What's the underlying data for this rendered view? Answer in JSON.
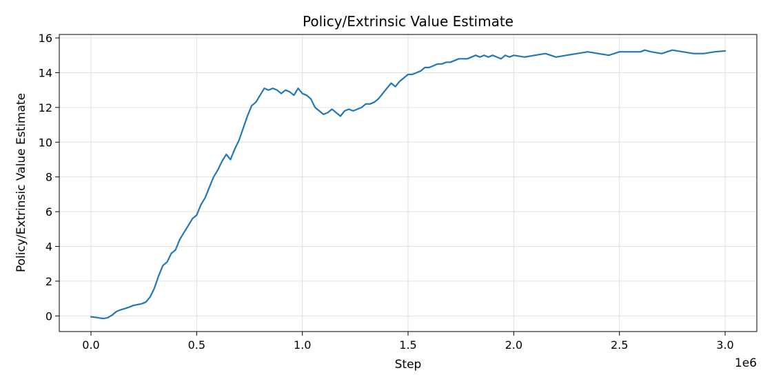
{
  "chart_data": {
    "type": "line",
    "title": "Policy/Extrinsic Value Estimate",
    "xlabel": "Step",
    "ylabel": "Policy/Extrinsic Value Estimate",
    "x_offset_label": "1e6",
    "xlim": [
      -0.15,
      3.15
    ],
    "ylim": [
      -0.9,
      16.2
    ],
    "x_ticks": [
      0.0,
      0.5,
      1.0,
      1.5,
      2.0,
      2.5,
      3.0
    ],
    "x_tick_labels": [
      "0.0",
      "0.5",
      "1.0",
      "1.5",
      "2.0",
      "2.5",
      "3.0"
    ],
    "y_ticks": [
      0,
      2,
      4,
      6,
      8,
      10,
      12,
      14,
      16
    ],
    "y_tick_labels": [
      "0",
      "2",
      "4",
      "6",
      "8",
      "10",
      "12",
      "14",
      "16"
    ],
    "grid": true,
    "colors": {
      "line": "#1f77b4",
      "grid": "#e0e0e0"
    },
    "series": [
      {
        "x": [
          0.0,
          0.02,
          0.04,
          0.06,
          0.08,
          0.1,
          0.12,
          0.14,
          0.16,
          0.18,
          0.2,
          0.22,
          0.24,
          0.26,
          0.28,
          0.3,
          0.32,
          0.34,
          0.36,
          0.38,
          0.4,
          0.42,
          0.44,
          0.46,
          0.48,
          0.5,
          0.52,
          0.54,
          0.56,
          0.58,
          0.6,
          0.62,
          0.64,
          0.66,
          0.68,
          0.7,
          0.72,
          0.74,
          0.76,
          0.78,
          0.8,
          0.82,
          0.84,
          0.86,
          0.88,
          0.9,
          0.92,
          0.94,
          0.96,
          0.98,
          1.0,
          1.02,
          1.04,
          1.06,
          1.08,
          1.1,
          1.12,
          1.14,
          1.16,
          1.18,
          1.2,
          1.22,
          1.24,
          1.26,
          1.28,
          1.3,
          1.32,
          1.34,
          1.36,
          1.38,
          1.4,
          1.42,
          1.44,
          1.46,
          1.48,
          1.5,
          1.52,
          1.54,
          1.56,
          1.58,
          1.6,
          1.62,
          1.64,
          1.66,
          1.68,
          1.7,
          1.72,
          1.74,
          1.76,
          1.78,
          1.8,
          1.82,
          1.84,
          1.86,
          1.88,
          1.9,
          1.92,
          1.94,
          1.96,
          1.98,
          2.0,
          2.05,
          2.1,
          2.15,
          2.2,
          2.25,
          2.3,
          2.35,
          2.4,
          2.45,
          2.5,
          2.55,
          2.6,
          2.62,
          2.65,
          2.7,
          2.75,
          2.8,
          2.85,
          2.9,
          2.95,
          3.0
        ],
        "y": [
          -0.05,
          -0.08,
          -0.12,
          -0.15,
          -0.1,
          0.05,
          0.25,
          0.35,
          0.42,
          0.5,
          0.6,
          0.65,
          0.7,
          0.8,
          1.1,
          1.6,
          2.3,
          2.9,
          3.1,
          3.6,
          3.8,
          4.4,
          4.8,
          5.2,
          5.6,
          5.8,
          6.4,
          6.8,
          7.4,
          8.0,
          8.4,
          8.9,
          9.3,
          9.0,
          9.6,
          10.1,
          10.8,
          11.5,
          12.1,
          12.3,
          12.7,
          13.1,
          13.0,
          13.1,
          13.0,
          12.8,
          13.0,
          12.9,
          12.7,
          13.1,
          12.8,
          12.7,
          12.5,
          12.0,
          11.8,
          11.6,
          11.7,
          11.9,
          11.7,
          11.5,
          11.8,
          11.9,
          11.8,
          11.9,
          12.0,
          12.2,
          12.2,
          12.3,
          12.5,
          12.8,
          13.1,
          13.4,
          13.2,
          13.5,
          13.7,
          13.9,
          13.9,
          14.0,
          14.1,
          14.3,
          14.3,
          14.4,
          14.5,
          14.5,
          14.6,
          14.6,
          14.7,
          14.8,
          14.8,
          14.8,
          14.9,
          15.0,
          14.9,
          15.0,
          14.9,
          15.0,
          14.9,
          14.8,
          15.0,
          14.9,
          15.0,
          14.9,
          15.0,
          15.1,
          14.9,
          15.0,
          15.1,
          15.2,
          15.1,
          15.0,
          15.2,
          15.2,
          15.2,
          15.3,
          15.2,
          15.1,
          15.3,
          15.2,
          15.1,
          15.1,
          15.2,
          15.25
        ]
      }
    ]
  }
}
